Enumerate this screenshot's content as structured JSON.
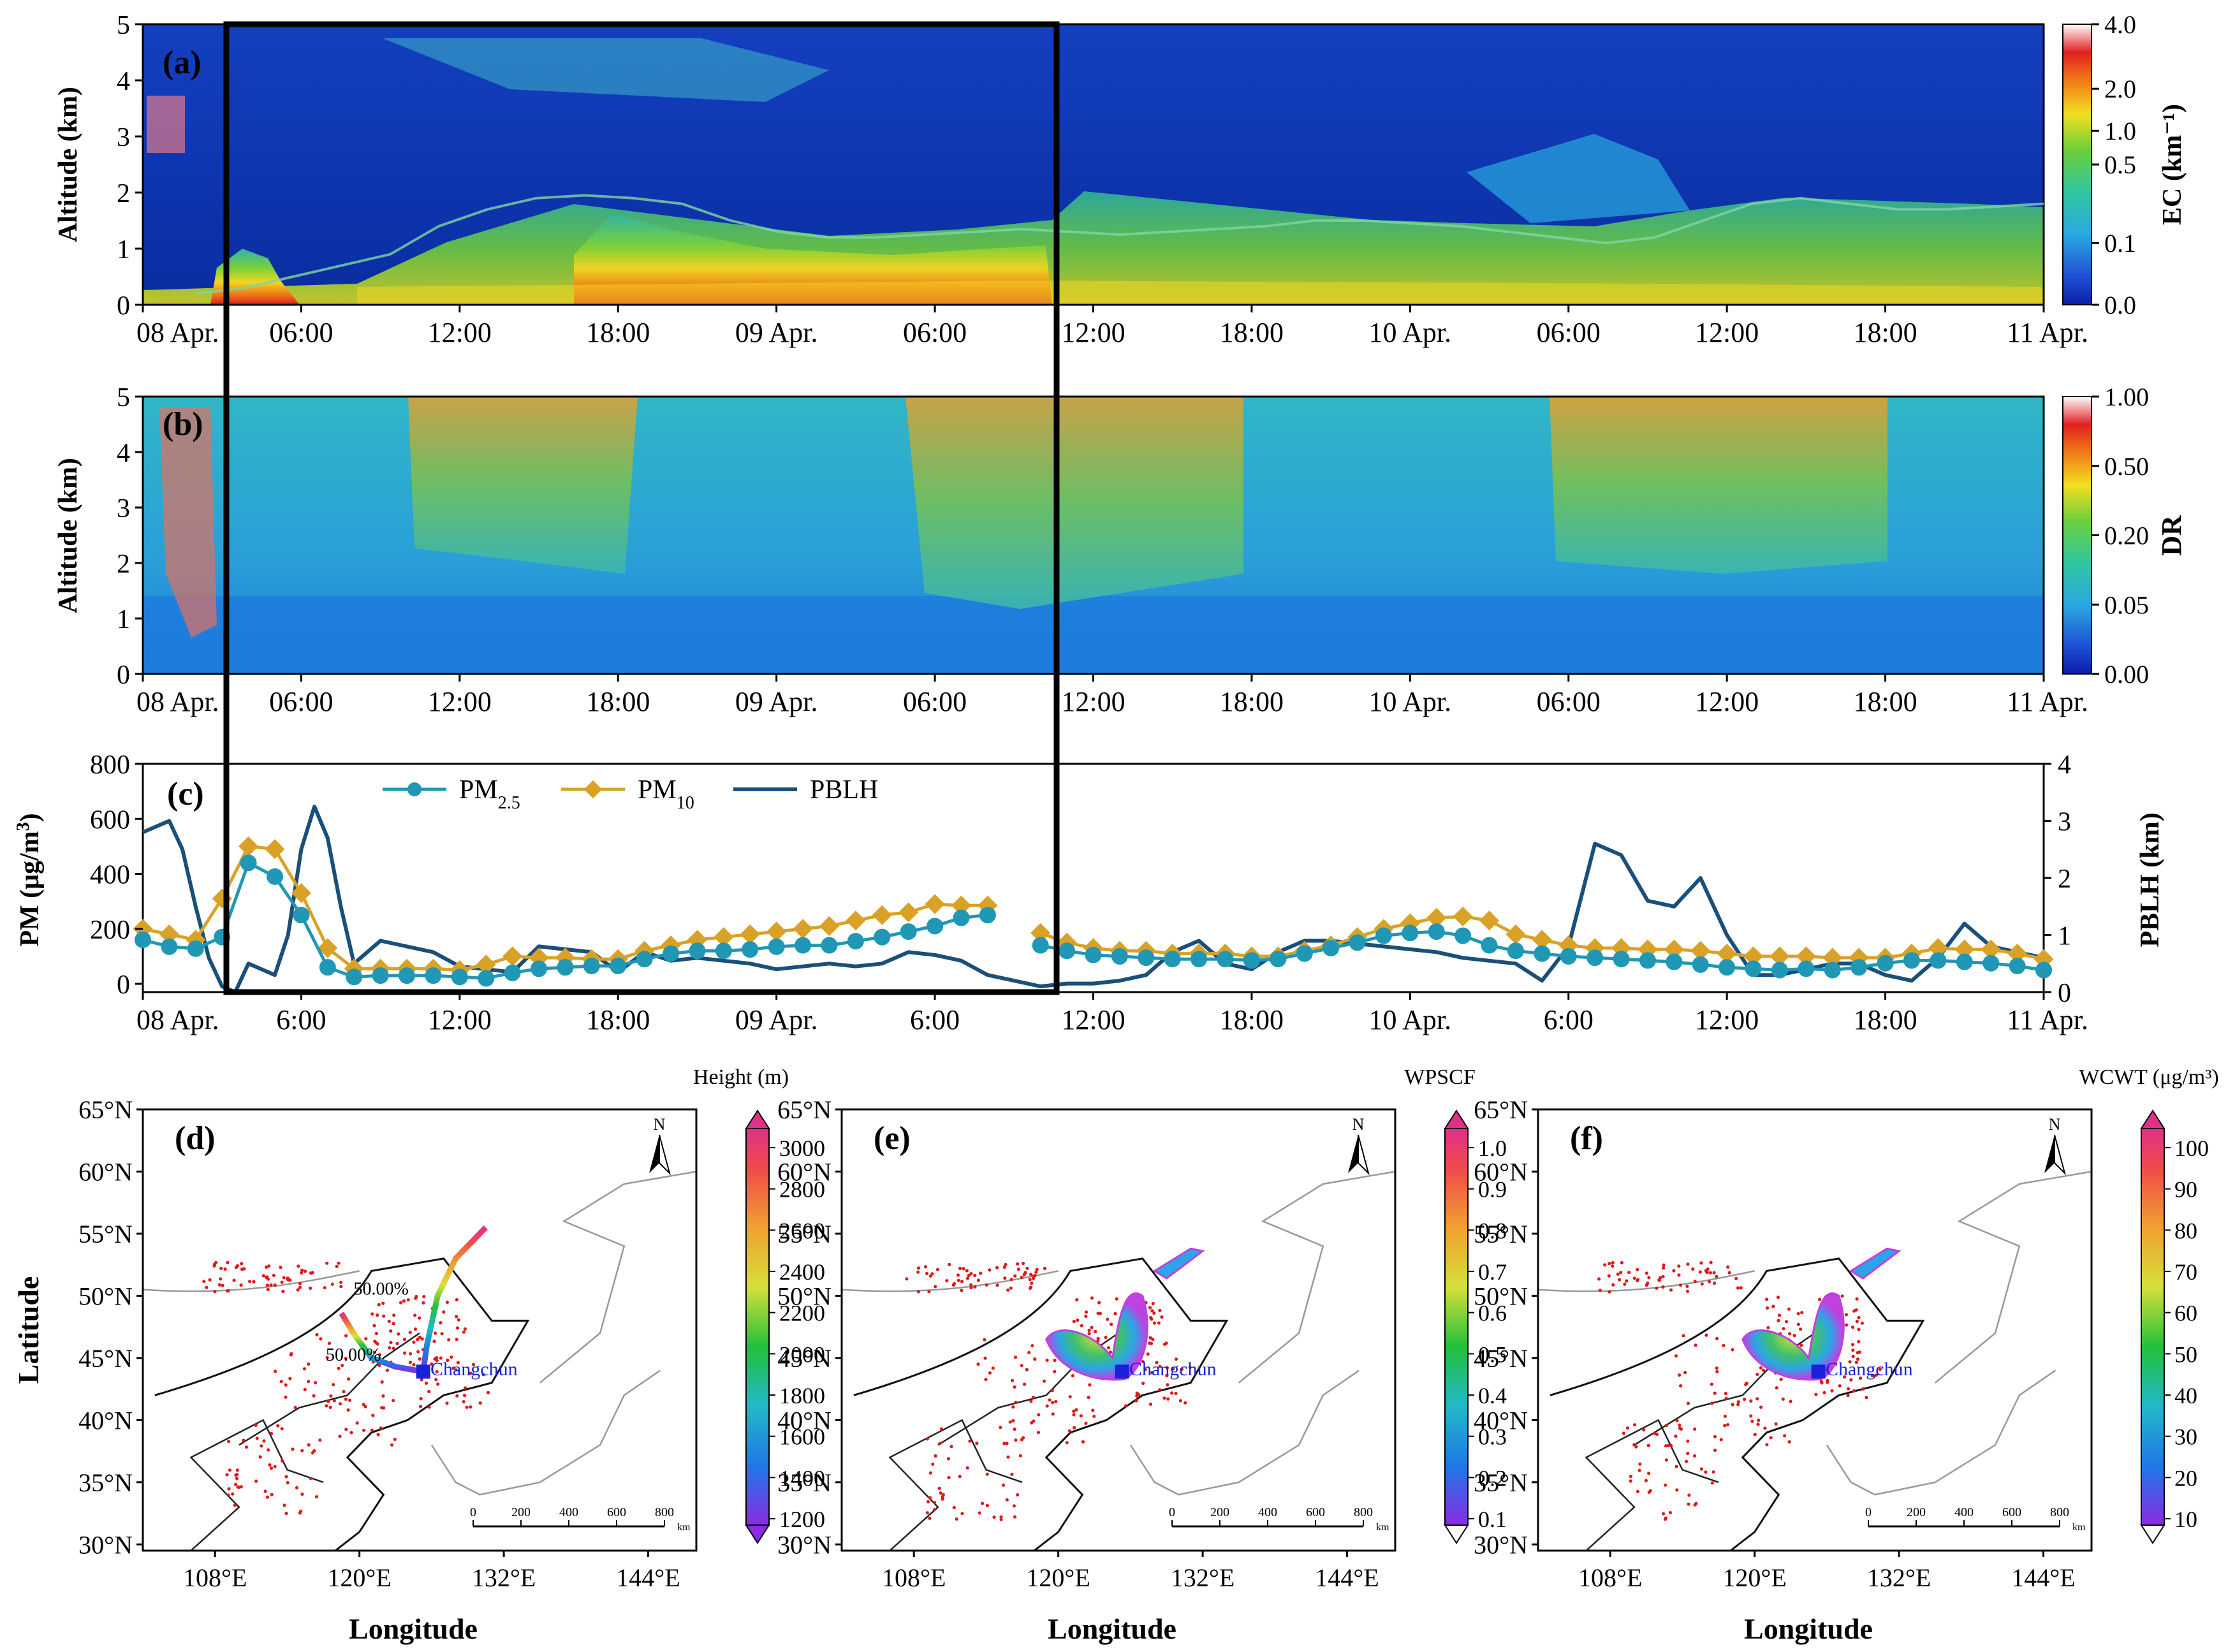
{
  "chart_data": [
    {
      "panel": "(a)",
      "type": "heatmap",
      "ylabel": "Altitude (km)",
      "ylim": [
        0,
        5
      ],
      "yticks": [
        "0",
        "1",
        "2",
        "3",
        "4",
        "5"
      ],
      "xtick_labels": [
        "08 Apr.",
        "06:00",
        "12:00",
        "18:00",
        "09 Apr.",
        "06:00",
        "12:00",
        "18:00",
        "10 Apr.",
        "06:00",
        "12:00",
        "18:00",
        "11 Apr."
      ],
      "x_hours": [
        0,
        6,
        12,
        18,
        24,
        30,
        36,
        42,
        48,
        54,
        60,
        66,
        72
      ],
      "colorbar": {
        "label": "EC (km⁻¹)",
        "ticks": [
          "0.0",
          "0.1",
          "0.5",
          "1.0",
          "2.0",
          "4.0"
        ]
      },
      "pblh_trace_km": [
        0.2,
        0.3,
        0.5,
        0.7,
        0.9,
        1.4,
        1.7,
        1.9,
        1.95,
        1.9,
        1.8,
        1.5,
        1.3,
        1.2,
        1.2,
        1.25,
        1.3,
        1.35,
        1.3,
        1.25,
        1.3,
        1.35,
        1.4,
        1.5,
        1.5,
        1.45,
        1.4,
        1.3,
        1.2,
        1.1,
        1.2,
        1.5,
        1.8,
        1.9,
        1.8,
        1.7,
        1.7,
        1.75,
        1.8
      ]
    },
    {
      "panel": "(b)",
      "type": "heatmap",
      "ylabel": "Altitude (km)",
      "ylim": [
        0,
        5
      ],
      "yticks": [
        "0",
        "1",
        "2",
        "3",
        "4",
        "5"
      ],
      "xtick_labels": [
        "08 Apr.",
        "06:00",
        "12:00",
        "18:00",
        "09 Apr.",
        "06:00",
        "12:00",
        "18:00",
        "10 Apr.",
        "06:00",
        "12:00",
        "18:00",
        "11 Apr."
      ],
      "x_hours": [
        0,
        6,
        12,
        18,
        24,
        30,
        36,
        42,
        48,
        54,
        60,
        66,
        72
      ],
      "colorbar": {
        "label": "DR",
        "ticks": [
          "0.00",
          "0.05",
          "0.20",
          "0.50",
          "1.00"
        ]
      }
    },
    {
      "panel": "(c)",
      "type": "line",
      "ylabel": "PM (μg/m³)",
      "ylabel_right": "PBLH (km)",
      "ylim": [
        -30,
        800
      ],
      "ylim_right": [
        0,
        4
      ],
      "yticks": [
        "0",
        "200",
        "400",
        "600",
        "800"
      ],
      "yticks_right": [
        "0",
        "1",
        "2",
        "3",
        "4"
      ],
      "xtick_labels": [
        "08 Apr.",
        "6:00",
        "12:00",
        "18:00",
        "09 Apr.",
        "6:00",
        "12:00",
        "18:00",
        "10 Apr.",
        "6:00",
        "12:00",
        "18:00",
        "11 Apr."
      ],
      "x_hours": [
        0,
        6,
        12,
        18,
        24,
        30,
        36,
        42,
        48,
        54,
        60,
        66,
        72
      ],
      "legend": [
        "PM2.5",
        "PM10",
        "PBLH"
      ],
      "legend_position": "top-center",
      "series": [
        {
          "name": "PM2.5",
          "color": "#1f97b5",
          "marker": "circle",
          "segments": [
            {
              "x": [
                0,
                1,
                2,
                3,
                4,
                5,
                6,
                7,
                8,
                9,
                10,
                11,
                12,
                13,
                14,
                15,
                16,
                17,
                18,
                19,
                20,
                21,
                22,
                23,
                24,
                25,
                26,
                27,
                28,
                29,
                30,
                31,
                32
              ],
              "y": [
                160,
                135,
                128,
                170,
                440,
                390,
                250,
                60,
                25,
                30,
                30,
                30,
                25,
                20,
                40,
                55,
                60,
                65,
                65,
                90,
                110,
                120,
                120,
                125,
                135,
                140,
                140,
                155,
                170,
                190,
                210,
                240,
                250
              ]
            },
            {
              "x": [
                34,
                35,
                36,
                37,
                38,
                39,
                40,
                41,
                42,
                43,
                44,
                45,
                46,
                47,
                48,
                49,
                50,
                51,
                52,
                53,
                54,
                55,
                56,
                57,
                58,
                59,
                60,
                61,
                62,
                63,
                64,
                65,
                66,
                67,
                68,
                69,
                70,
                71,
                72
              ],
              "y": [
                140,
                120,
                105,
                100,
                95,
                90,
                90,
                90,
                85,
                90,
                110,
                130,
                150,
                175,
                185,
                190,
                175,
                140,
                120,
                110,
                100,
                95,
                90,
                85,
                80,
                70,
                60,
                55,
                50,
                55,
                50,
                60,
                75,
                85,
                85,
                80,
                75,
                65,
                50
              ]
            }
          ]
        },
        {
          "name": "PM10",
          "color": "#d9a227",
          "marker": "diamond",
          "segments": [
            {
              "x": [
                0,
                1,
                2,
                3,
                4,
                5,
                6,
                7,
                8,
                9,
                10,
                11,
                12,
                13,
                14,
                15,
                16,
                17,
                18,
                19,
                20,
                21,
                22,
                23,
                24,
                25,
                26,
                27,
                28,
                29,
                30,
                31,
                32
              ],
              "y": [
                200,
                180,
                160,
                310,
                500,
                490,
                330,
                130,
                55,
                55,
                55,
                55,
                50,
                70,
                100,
                95,
                95,
                90,
                90,
                120,
                140,
                160,
                170,
                180,
                190,
                200,
                210,
                230,
                250,
                260,
                290,
                285,
                285
              ]
            },
            {
              "x": [
                34,
                35,
                36,
                37,
                38,
                39,
                40,
                41,
                42,
                43,
                44,
                45,
                46,
                47,
                48,
                49,
                50,
                51,
                52,
                53,
                54,
                55,
                56,
                57,
                58,
                59,
                60,
                61,
                62,
                63,
                64,
                65,
                66,
                67,
                68,
                69,
                70,
                71,
                72
              ],
              "y": [
                185,
                150,
                130,
                120,
                120,
                110,
                110,
                110,
                100,
                100,
                120,
                140,
                170,
                200,
                220,
                240,
                245,
                230,
                180,
                160,
                140,
                130,
                130,
                125,
                125,
                120,
                110,
                100,
                100,
                100,
                95,
                95,
                95,
                110,
                130,
                125,
                125,
                110,
                90
              ]
            }
          ]
        },
        {
          "name": "PBLH",
          "color": "#1a4f7a",
          "marker": "none",
          "axis": "right",
          "x": [
            0,
            1,
            1.5,
            2,
            2.5,
            3,
            3.5,
            4,
            5,
            5.5,
            6,
            6.5,
            7,
            7.5,
            8,
            9,
            10,
            11,
            12,
            13,
            14,
            15,
            16,
            17,
            18,
            19,
            20,
            21,
            22,
            23,
            24,
            25,
            26,
            27,
            28,
            29,
            30,
            31,
            32,
            33,
            34,
            35,
            36,
            37,
            38,
            39,
            40,
            41,
            42,
            43,
            44,
            45,
            46,
            47,
            48,
            49,
            50,
            51,
            52,
            53,
            54,
            55,
            56,
            57,
            58,
            59,
            60,
            61,
            62,
            63,
            64,
            65,
            66,
            67,
            68,
            69,
            70,
            71,
            72
          ],
          "y": [
            2.8,
            3.0,
            2.5,
            1.5,
            0.6,
            0.1,
            0.0,
            0.5,
            0.3,
            1.0,
            2.5,
            3.25,
            2.7,
            1.5,
            0.5,
            0.9,
            0.8,
            0.7,
            0.45,
            0.4,
            0.35,
            0.8,
            0.75,
            0.7,
            0.35,
            0.7,
            0.55,
            0.6,
            0.55,
            0.5,
            0.4,
            0.45,
            0.5,
            0.45,
            0.5,
            0.7,
            0.65,
            0.55,
            0.3,
            0.2,
            0.1,
            0.15,
            0.15,
            0.2,
            0.3,
            0.7,
            0.9,
            0.5,
            0.4,
            0.7,
            0.9,
            0.9,
            0.85,
            0.8,
            0.75,
            0.7,
            0.6,
            0.55,
            0.5,
            0.2,
            0.8,
            2.6,
            2.4,
            1.6,
            1.5,
            2.0,
            1.0,
            0.3,
            0.3,
            0.4,
            0.5,
            0.5,
            0.3,
            0.2,
            0.6,
            1.2,
            0.8,
            0.7,
            0.6
          ]
        }
      ]
    },
    {
      "panel": "(d)",
      "type": "map",
      "xlabel": "Longitude",
      "ylabel": "Latitude",
      "xticks": [
        "108°E",
        "120°E",
        "132°E",
        "144°E"
      ],
      "yticks": [
        "30°N",
        "35°N",
        "40°N",
        "45°N",
        "50°N",
        "55°N",
        "60°N",
        "65°N"
      ],
      "colorbar": {
        "label": "Height (m)",
        "ticks": [
          "1200",
          "1400",
          "1600",
          "1800",
          "2000",
          "2200",
          "2400",
          "2600",
          "2800",
          "3000"
        ]
      },
      "site_label": "Changchun",
      "annotations": [
        "50.00%",
        "50.00%"
      ],
      "scalebar": [
        "0",
        "200",
        "400",
        "600",
        "800",
        "km"
      ],
      "north_label": "N"
    },
    {
      "panel": "(e)",
      "type": "map",
      "xlabel": "Longitude",
      "xticks": [
        "108°E",
        "120°E",
        "132°E",
        "144°E"
      ],
      "yticks": [
        "30°N",
        "35°N",
        "40°N",
        "45°N",
        "50°N",
        "55°N",
        "60°N",
        "65°N"
      ],
      "colorbar": {
        "label": "WPSCF",
        "ticks": [
          "0.1",
          "0.2",
          "0.3",
          "0.4",
          "0.5",
          "0.6",
          "0.7",
          "0.8",
          "0.9",
          "1.0"
        ]
      },
      "site_label": "Changchun",
      "scalebar": [
        "0",
        "200",
        "400",
        "600",
        "800",
        "km"
      ],
      "north_label": "N"
    },
    {
      "panel": "(f)",
      "type": "map",
      "xlabel": "Longitude",
      "xticks": [
        "108°E",
        "120°E",
        "132°E",
        "144°E"
      ],
      "yticks": [
        "30°N",
        "35°N",
        "40°N",
        "45°N",
        "50°N",
        "55°N",
        "60°N",
        "65°N"
      ],
      "colorbar": {
        "label": "WCWT (μg/m³)",
        "ticks": [
          "10",
          "20",
          "30",
          "40",
          "50",
          "60",
          "70",
          "80",
          "90",
          "100"
        ]
      },
      "site_label": "Changchun",
      "scalebar": [
        "0",
        "200",
        "400",
        "600",
        "800",
        "km"
      ],
      "north_label": "N"
    }
  ]
}
